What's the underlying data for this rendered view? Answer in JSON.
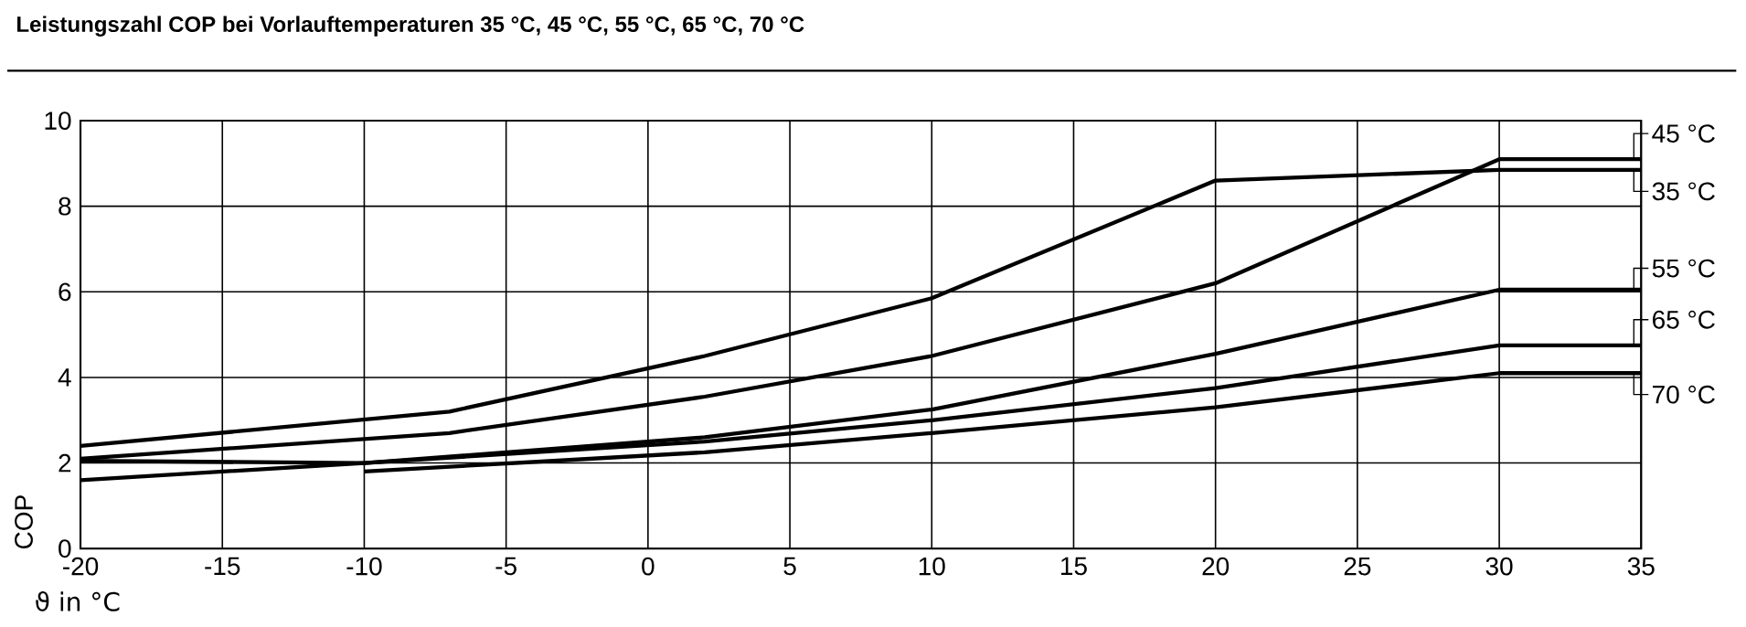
{
  "chart_data": {
    "type": "line",
    "title": "Leistungszahl COP bei Vorlauftemperaturen 35 °C, 45 °C, 55 °C, 65 °C, 70 °C",
    "xlabel": "ϑ in °C",
    "ylabel": "COP",
    "xlim": [
      -20,
      35
    ],
    "xticks": [
      -20,
      -15,
      -10,
      -5,
      0,
      5,
      10,
      15,
      20,
      25,
      30,
      35
    ],
    "ylim": [
      0,
      10
    ],
    "yticks": [
      0,
      2,
      4,
      6,
      8,
      10
    ],
    "grid": true,
    "legend": "right",
    "marker": "none",
    "line_style": "solid",
    "series": [
      {
        "name": "35 °C",
        "color": "#000000",
        "x": [
          -20,
          -7,
          2,
          10,
          20,
          30,
          35
        ],
        "values": [
          2.4,
          3.2,
          4.5,
          5.85,
          8.6,
          8.85,
          8.85
        ]
      },
      {
        "name": "45 °C",
        "color": "#000000",
        "x": [
          -20,
          -7,
          2,
          10,
          20,
          30,
          35
        ],
        "values": [
          2.1,
          2.7,
          3.55,
          4.5,
          6.2,
          9.1,
          9.1
        ]
      },
      {
        "name": "55 °C",
        "color": "#000000",
        "x": [
          -20,
          -10,
          2,
          10,
          20,
          30,
          35
        ],
        "values": [
          2.05,
          2.0,
          2.6,
          3.25,
          4.55,
          6.05,
          6.05
        ]
      },
      {
        "name": "65 °C",
        "color": "#000000",
        "x": [
          -20,
          -10,
          2,
          10,
          20,
          30,
          35
        ],
        "values": [
          1.6,
          2.0,
          2.5,
          3.0,
          3.75,
          4.75,
          4.75
        ]
      },
      {
        "name": "70 °C",
        "color": "#000000",
        "x": [
          -10,
          2,
          10,
          20,
          30,
          35
        ],
        "values": [
          1.8,
          2.25,
          2.7,
          3.3,
          4.1,
          4.1
        ]
      }
    ]
  }
}
